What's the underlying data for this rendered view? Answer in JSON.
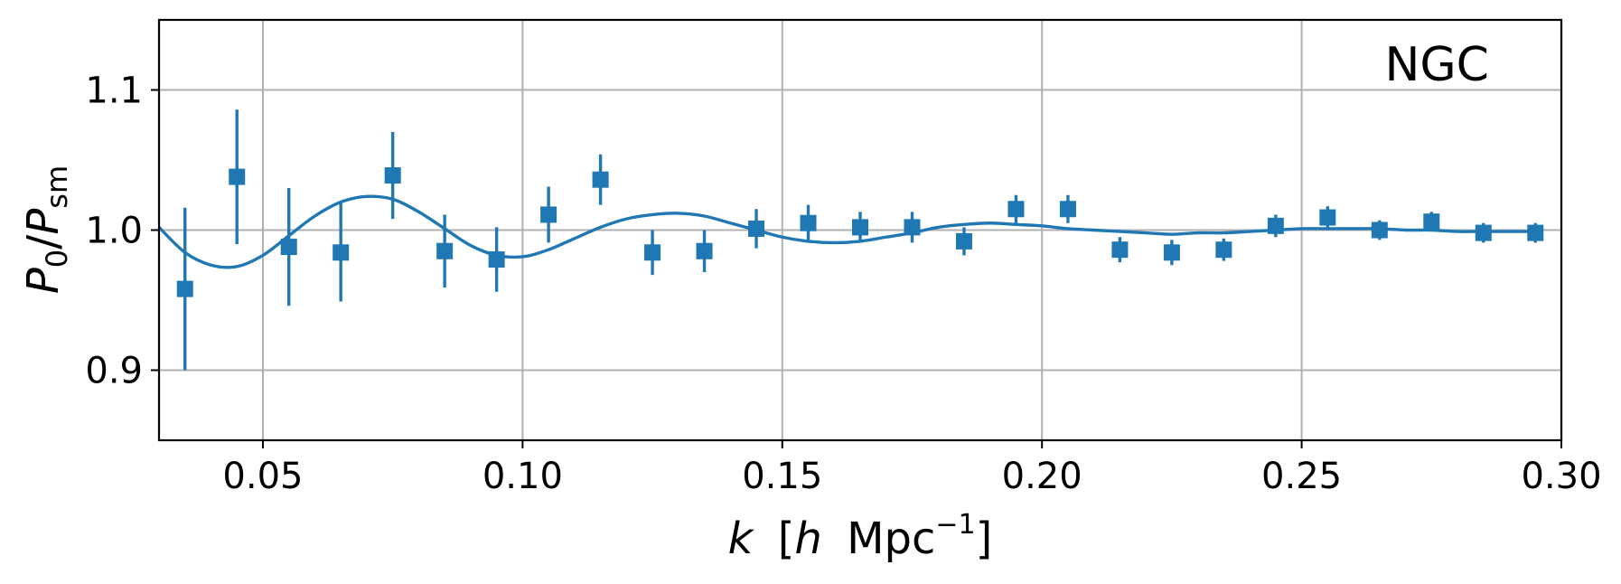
{
  "chart_data": {
    "type": "scatter",
    "annotation": "NGC",
    "xlabel": {
      "var": "k",
      "open": "[",
      "h": "h",
      "unit": "Mpc",
      "exp": "−1",
      "close": "]"
    },
    "ylabel": {
      "main": "P",
      "sub_top": "0",
      "slash": "/",
      "main2": "P",
      "sub_bottom": "sm"
    },
    "xlim": [
      0.03,
      0.3
    ],
    "ylim": [
      0.85,
      1.15
    ],
    "xticks": [
      "0.05",
      "0.10",
      "0.15",
      "0.20",
      "0.25",
      "0.30"
    ],
    "xtick_values": [
      0.05,
      0.1,
      0.15,
      0.2,
      0.25,
      0.3
    ],
    "yticks": [
      "0.9",
      "1.0",
      "1.1"
    ],
    "ytick_values": [
      0.9,
      1.0,
      1.1
    ],
    "grid": true,
    "color": "#1f77b4",
    "series": [
      {
        "type": "errorbar",
        "marker": "square",
        "x": [
          0.035,
          0.045,
          0.055,
          0.065,
          0.075,
          0.085,
          0.095,
          0.105,
          0.115,
          0.125,
          0.135,
          0.145,
          0.155,
          0.165,
          0.175,
          0.185,
          0.195,
          0.205,
          0.215,
          0.225,
          0.235,
          0.245,
          0.255,
          0.265,
          0.275,
          0.285,
          0.295
        ],
        "y": [
          0.958,
          1.038,
          0.988,
          0.984,
          1.039,
          0.985,
          0.979,
          1.011,
          1.036,
          0.984,
          0.985,
          1.001,
          1.005,
          1.002,
          1.002,
          0.992,
          1.015,
          1.015,
          0.986,
          0.984,
          0.986,
          1.003,
          1.009,
          1.0,
          1.006,
          0.998,
          0.998
        ],
        "yerr": [
          0.058,
          0.048,
          0.042,
          0.035,
          0.031,
          0.026,
          0.023,
          0.02,
          0.018,
          0.016,
          0.015,
          0.014,
          0.013,
          0.011,
          0.011,
          0.01,
          0.01,
          0.01,
          0.009,
          0.009,
          0.008,
          0.008,
          0.008,
          0.007,
          0.007,
          0.007,
          0.007
        ]
      },
      {
        "type": "line",
        "x": [
          0.03,
          0.035,
          0.04,
          0.045,
          0.05,
          0.055,
          0.06,
          0.065,
          0.07,
          0.075,
          0.08,
          0.085,
          0.09,
          0.095,
          0.1,
          0.105,
          0.11,
          0.115,
          0.12,
          0.125,
          0.13,
          0.135,
          0.14,
          0.145,
          0.15,
          0.155,
          0.16,
          0.165,
          0.17,
          0.175,
          0.18,
          0.185,
          0.19,
          0.195,
          0.2,
          0.205,
          0.21,
          0.215,
          0.22,
          0.225,
          0.23,
          0.235,
          0.24,
          0.245,
          0.25,
          0.255,
          0.26,
          0.265,
          0.27,
          0.275,
          0.28,
          0.285,
          0.29,
          0.295
        ],
        "y": [
          1.002,
          0.984,
          0.975,
          0.974,
          0.982,
          0.996,
          1.01,
          1.02,
          1.024,
          1.022,
          1.013,
          1.001,
          0.989,
          0.982,
          0.981,
          0.986,
          0.994,
          1.002,
          1.008,
          1.011,
          1.012,
          1.01,
          1.005,
          1.0,
          0.995,
          0.992,
          0.991,
          0.992,
          0.995,
          0.998,
          1.002,
          1.004,
          1.005,
          1.004,
          1.003,
          1.001,
          1.0,
          0.999,
          0.998,
          0.997,
          0.998,
          0.998,
          0.999,
          1.0,
          1.001,
          1.001,
          1.001,
          1.001,
          1.0,
          1.0,
          0.999,
          0.999,
          0.999,
          0.999
        ]
      }
    ]
  }
}
